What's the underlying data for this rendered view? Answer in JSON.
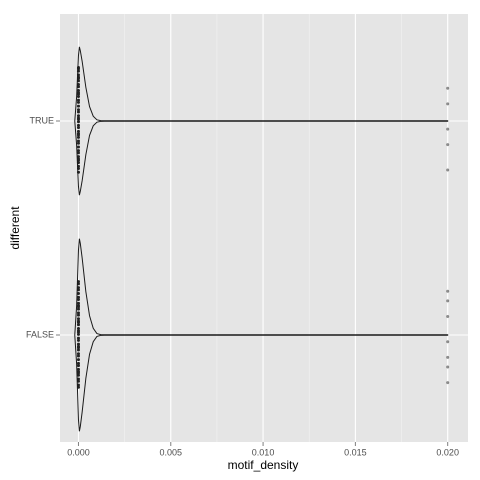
{
  "chart_data": {
    "type": "violin",
    "orientation": "horizontal",
    "x_label": "motif_density",
    "y_label": "different",
    "categories": [
      "TRUE",
      "FALSE"
    ],
    "xlim": [
      -0.001,
      0.0211
    ],
    "xticks": [
      {
        "value": 0,
        "label": "0.000"
      },
      0.005,
      {
        "value": 0.01,
        "label": "0.010"
      },
      0.015,
      {
        "value": 0.02,
        "label": "0.020"
      }
    ],
    "grid": true,
    "minor_grid": true,
    "background": "#e5e5e5",
    "line_color": "#1a1a1a",
    "point_color": "#222222",
    "violins": [
      {
        "x": [
          -0.0002,
          -0.0001,
          0,
          5e-05,
          0.0001,
          0.0002,
          0.0004,
          0.0006,
          0.0008,
          0.001,
          0.0012,
          0.0014,
          0.02
        ],
        "density": [
          0,
          0.25,
          0.68,
          0.77,
          0.73,
          0.62,
          0.35,
          0.15,
          0.05,
          0.012,
          0.004,
          0.002,
          0.002
        ]
      },
      {
        "x": [
          -0.0002,
          -0.0001,
          0,
          5e-05,
          0.0001,
          0.0002,
          0.0004,
          0.0006,
          0.0008,
          0.001,
          0.0012,
          0.0014,
          0.02
        ],
        "density": [
          0,
          0.3,
          0.88,
          1,
          0.95,
          0.8,
          0.45,
          0.2,
          0.07,
          0.015,
          0.004,
          0.002,
          0.002
        ]
      }
    ],
    "points": [
      [
        0,
        0,
        0,
        0,
        0,
        0,
        0,
        0,
        0,
        0,
        0,
        0,
        0,
        0,
        0,
        0,
        0,
        0,
        0,
        0,
        0,
        0,
        0,
        0,
        0,
        0,
        0,
        0,
        0,
        0,
        0,
        0,
        0,
        0,
        0,
        0,
        0,
        0,
        0,
        0,
        0.02,
        0.02,
        0.02,
        0.02,
        0.02
      ],
      [
        0,
        0,
        0,
        0,
        0,
        0,
        0,
        0,
        0,
        0,
        0,
        0,
        0,
        0,
        0,
        0,
        0,
        0,
        0,
        0,
        0,
        0,
        0,
        0,
        0,
        0,
        0,
        0,
        0,
        0,
        0,
        0,
        0,
        0,
        0,
        0,
        0,
        0,
        0,
        0,
        0.02,
        0.02,
        0.02,
        0.02,
        0.02,
        0.02,
        0.02
      ]
    ]
  }
}
